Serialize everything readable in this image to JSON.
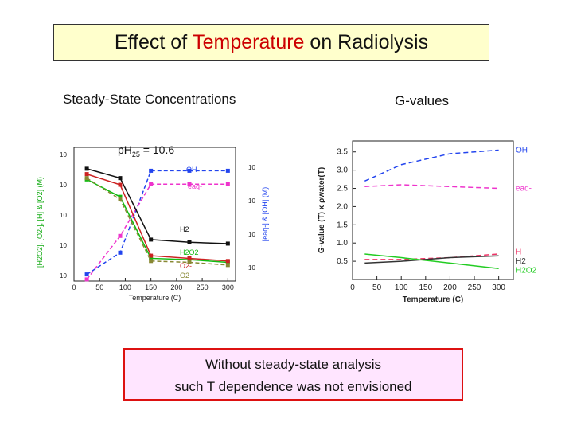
{
  "slide": {
    "title_pre": "Effect of ",
    "title_highlight": "Temperature",
    "title_post": " on Radiolysis",
    "left_heading": "Steady-State Concentrations",
    "right_heading": "G-values",
    "ph_label": "pH",
    "ph_sub": "25",
    "ph_value": " = 10.6",
    "note_line1": "Without steady-state analysis",
    "note_line2": "such T dependence was not envisioned",
    "colors": {
      "highlight": "#cc0000",
      "box_bg": "#ffffcc",
      "note_bg": "#ffe5ff",
      "note_border": "#dd1111"
    }
  },
  "chart_data": [
    {
      "type": "line",
      "xlabel": "Temperature (C)",
      "x": [
        25,
        90,
        150,
        225,
        300
      ],
      "xticks": [
        0,
        50,
        100,
        150,
        200,
        250,
        300
      ],
      "xlim": [
        0,
        315
      ],
      "left_axis_label": "[H2O2], [O2-], [H] & [O2] (M)",
      "right_axis_label": "[eaq-] & [OH] (M)",
      "left_ticks": [
        "10",
        "10",
        "10",
        "10",
        "10"
      ],
      "right_ticks": [
        "10",
        "10",
        "10",
        "10"
      ],
      "series": [
        {
          "name": "OH",
          "color": "#2244ee",
          "dash": true,
          "axis": "right",
          "values": [
            -14.6,
            -13.3,
            -8.4,
            -8.4,
            -8.4
          ]
        },
        {
          "name": "eaq-",
          "color": "#ee33cc",
          "dash": true,
          "axis": "right",
          "values": [
            -14.9,
            -12.3,
            -9.2,
            -9.2,
            -9.2
          ]
        },
        {
          "name": "H2",
          "color": "#111111",
          "dash": false,
          "axis": "left",
          "values": [
            -3.6,
            -4.3,
            -8.9,
            -9.1,
            -9.2
          ]
        },
        {
          "name": "H2O2",
          "color": "#11bb11",
          "dash": false,
          "axis": "left",
          "values": [
            -4.4,
            -5.7,
            -10.3,
            -10.4,
            -10.6
          ]
        },
        {
          "name": "O2-",
          "color": "#cc2222",
          "dash": false,
          "axis": "left",
          "values": [
            -4.0,
            -4.8,
            -10.1,
            -10.3,
            -10.5
          ]
        },
        {
          "name": "O2",
          "color": "#888833",
          "dash": true,
          "axis": "left",
          "values": [
            -4.3,
            -5.9,
            -10.5,
            -10.6,
            -10.8
          ]
        }
      ]
    },
    {
      "type": "line",
      "xlabel": "Temperature (C)",
      "ylabel": "G-value (T) x ρwater(T)",
      "xticks": [
        0,
        50,
        100,
        150,
        200,
        250,
        300
      ],
      "xlim": [
        0,
        330
      ],
      "yticks": [
        0.5,
        1.0,
        1.5,
        2.0,
        2.5,
        3.0,
        3.5
      ],
      "ylim": [
        0,
        3.8
      ],
      "series": [
        {
          "name": "OH",
          "color": "#2244ee",
          "dash": true,
          "x": [
            25,
            100,
            200,
            300
          ],
          "values": [
            2.7,
            3.15,
            3.45,
            3.55
          ]
        },
        {
          "name": "eaq-",
          "color": "#ee33cc",
          "dash": true,
          "x": [
            25,
            100,
            200,
            300
          ],
          "values": [
            2.55,
            2.6,
            2.55,
            2.5
          ]
        },
        {
          "name": "H",
          "color": "#ee3366",
          "dash": true,
          "x": [
            25,
            100,
            200,
            300
          ],
          "values": [
            0.55,
            0.55,
            0.6,
            0.7
          ]
        },
        {
          "name": "H2",
          "color": "#333333",
          "dash": false,
          "x": [
            25,
            100,
            200,
            300
          ],
          "values": [
            0.45,
            0.5,
            0.6,
            0.65
          ]
        },
        {
          "name": "H2O2",
          "color": "#22cc22",
          "dash": false,
          "x": [
            25,
            100,
            200,
            300
          ],
          "values": [
            0.7,
            0.6,
            0.45,
            0.3
          ]
        }
      ]
    }
  ]
}
